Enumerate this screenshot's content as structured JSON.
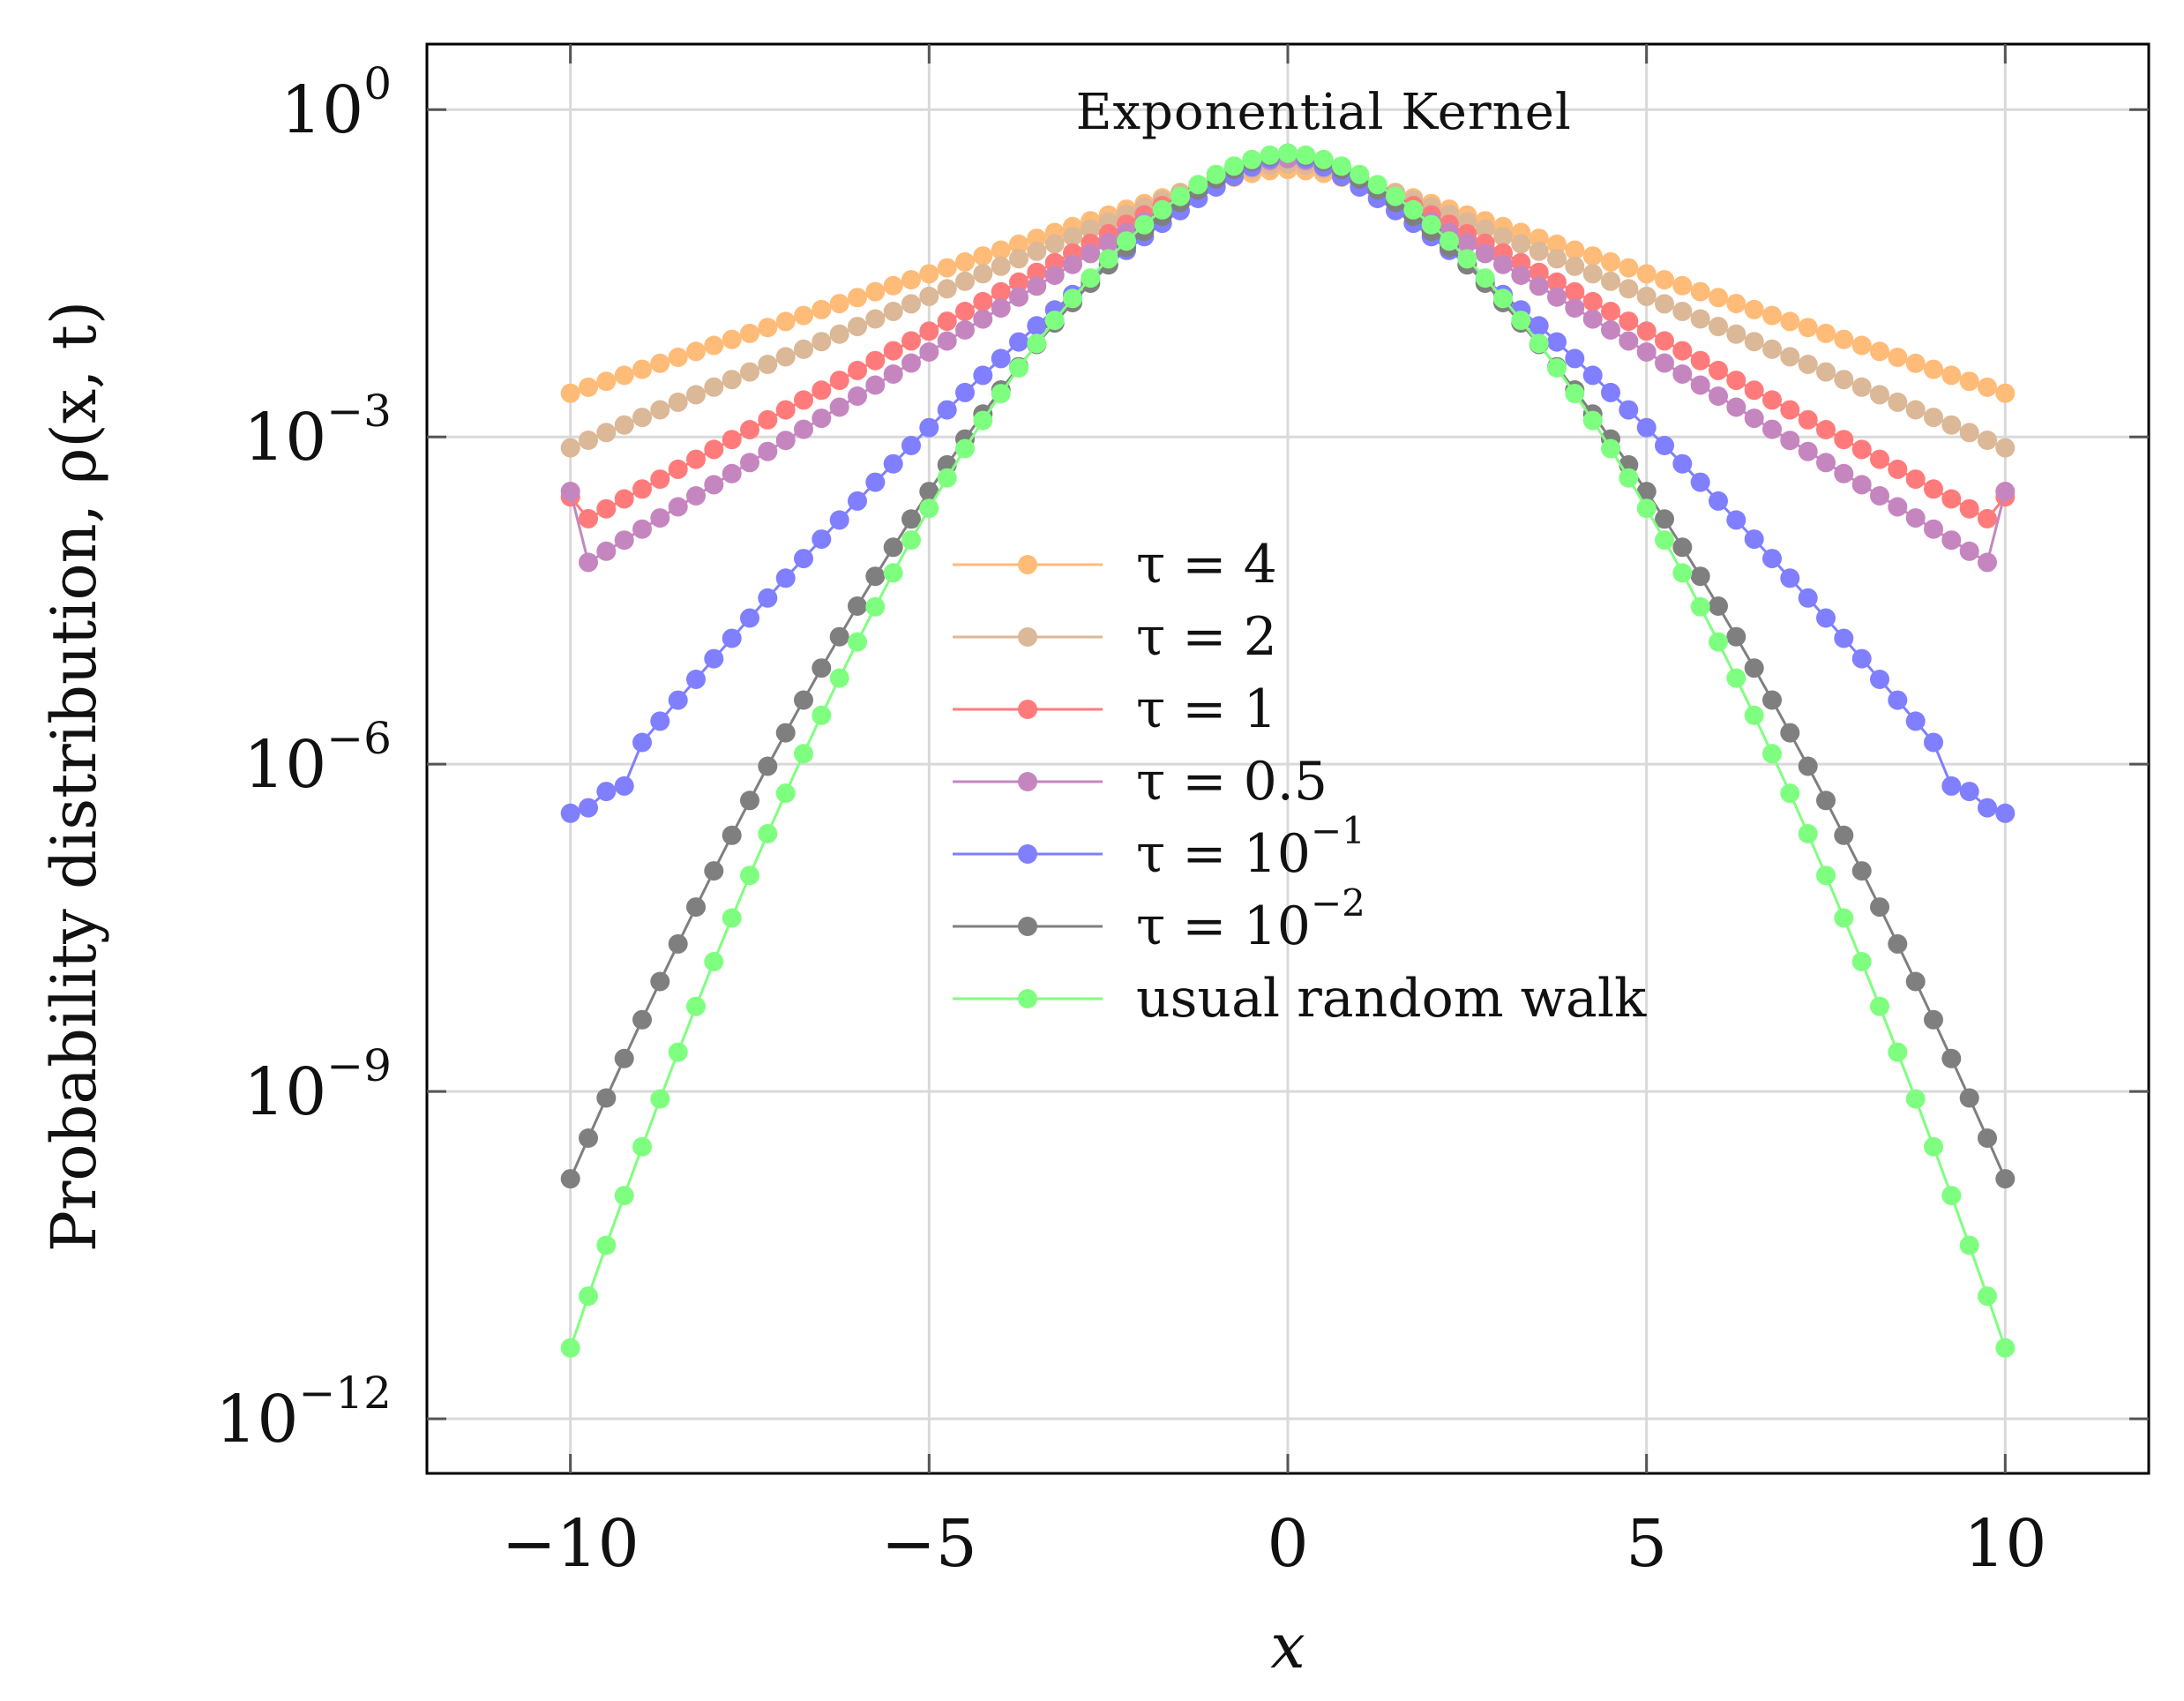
{
  "chart_data": {
    "type": "line",
    "title": "Exponential Kernel",
    "xlabel": "x",
    "ylabel": "Probability distribution, ρ(x, t)",
    "xlim": [
      -12,
      12
    ],
    "ylim_log10": [
      -12.5,
      0.6
    ],
    "yscale": "log",
    "grid": true,
    "legend_position": "center",
    "x_ticks": [
      -10,
      -5,
      0,
      5,
      10
    ],
    "x_tick_labels": [
      "−10",
      "−5",
      "0",
      "5",
      "10"
    ],
    "y_ticks": [
      {
        "log10": 0,
        "base": "10",
        "exp": "0"
      },
      {
        "log10": -3,
        "base": "10",
        "exp": "−3"
      },
      {
        "log10": -6,
        "base": "10",
        "exp": "−6"
      },
      {
        "log10": -9,
        "base": "10",
        "exp": "−9"
      },
      {
        "log10": -12,
        "base": "10",
        "exp": "−12"
      }
    ],
    "x_range": {
      "start": -10,
      "stop": 10,
      "step": 0.25
    },
    "series": [
      {
        "name": "τ = 4",
        "name_base": "τ = 4",
        "name_exp": "",
        "color": "#ffbb78",
        "model": {
          "kind": "exp",
          "peak_log10": -0.55,
          "edge_log10": -2.6
        }
      },
      {
        "name": "τ = 2",
        "name_base": "τ = 2",
        "name_exp": "",
        "color": "#dbb897",
        "model": {
          "kind": "exp",
          "peak_log10": -0.5,
          "edge_log10": -3.1
        }
      },
      {
        "name": "τ = 1",
        "name_base": "τ = 1",
        "name_exp": "",
        "color": "#ff7b7b",
        "model": {
          "kind": "exp_dip",
          "peak_log10": -0.45,
          "edge_log10": -3.55,
          "dip_log10": -3.75,
          "dip_x": 9.75
        }
      },
      {
        "name": "τ = 0.5",
        "name_base": "τ = 0.5",
        "name_exp": "",
        "color": "#c586c0",
        "model": {
          "kind": "exp_dip",
          "peak_log10": -0.45,
          "edge_log10": -3.5,
          "dip_log10": -4.15,
          "dip_x": 9.75
        }
      },
      {
        "name": "τ = 10⁻¹",
        "name_base": "τ = 10",
        "name_exp": "−1",
        "color": "#7f7fff",
        "model": {
          "kind": "stretched",
          "peak_log10": -0.4,
          "log10_at_9": -5.8,
          "power": 1.3,
          "tail": [
            [
              9.25,
              -6.2
            ],
            [
              9.5,
              -6.25
            ],
            [
              9.75,
              -6.4
            ],
            [
              10.0,
              -6.45
            ]
          ]
        }
      },
      {
        "name": "τ = 10⁻²",
        "name_base": "τ = 10",
        "name_exp": "−2",
        "color": "#7f7f7f",
        "model": {
          "kind": "power",
          "peak_log10": -0.4,
          "edge_log10": -9.8,
          "power": 1.6
        }
      },
      {
        "name": "usual random walk",
        "name_base": "usual random walk",
        "name_exp": "",
        "color": "#7fff7f",
        "model": {
          "kind": "power",
          "peak_log10": -0.4,
          "edge_log10": -11.35,
          "power": 1.75
        }
      }
    ]
  }
}
